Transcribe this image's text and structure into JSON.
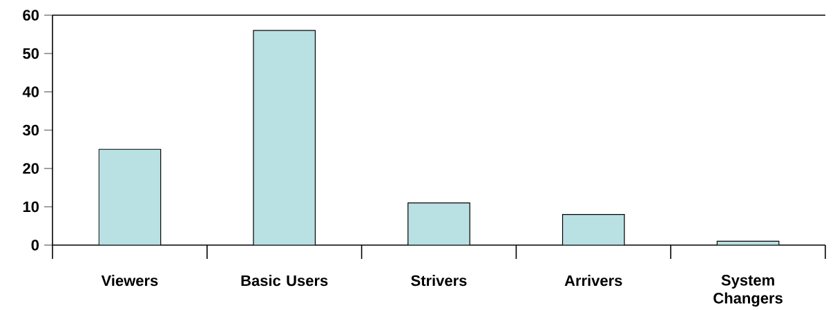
{
  "chart_data": {
    "type": "bar",
    "categories": [
      "Viewers",
      "Basic Users",
      "Strivers",
      "Arrivers",
      "System Changers"
    ],
    "values": [
      25,
      56,
      11,
      8,
      1
    ],
    "color": "#b9e0e3",
    "ylim": [
      0,
      60
    ],
    "yticks": [
      0,
      10,
      20,
      30,
      40,
      50,
      60
    ],
    "grid": false
  }
}
